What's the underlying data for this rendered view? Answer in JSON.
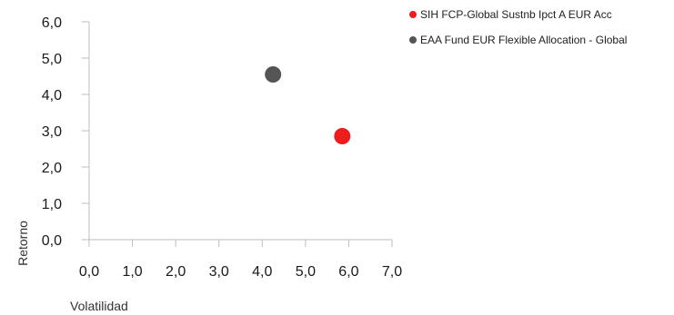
{
  "chart_data": {
    "type": "scatter",
    "xlabel": "Volatilidad",
    "ylabel": "Retorno",
    "xlim": [
      0,
      7
    ],
    "ylim": [
      0,
      6
    ],
    "x_ticks": [
      "0,0",
      "1,0",
      "2,0",
      "3,0",
      "4,0",
      "5,0",
      "6,0",
      "7,0"
    ],
    "y_ticks": [
      "0,0",
      "1,0",
      "2,0",
      "3,0",
      "4,0",
      "5,0",
      "6,0"
    ],
    "grid": false,
    "legend_position": "top-right",
    "series": [
      {
        "name": "SIH FCP-Global Sustnb Ipct A EUR Acc",
        "color": "#ee1c1c",
        "points": [
          {
            "x": 5.85,
            "y": 2.85
          }
        ]
      },
      {
        "name": "EAA Fund EUR Flexible Allocation - Global",
        "color": "#555555",
        "points": [
          {
            "x": 4.25,
            "y": 4.55
          }
        ]
      }
    ]
  }
}
